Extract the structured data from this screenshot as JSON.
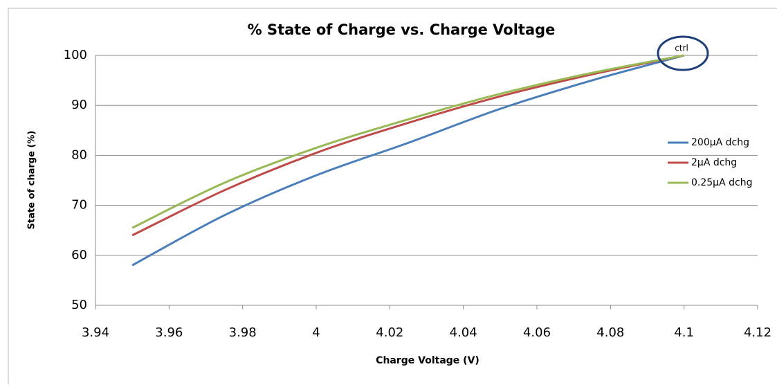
{
  "chart_data": {
    "type": "line",
    "title": "% State of Charge vs. Charge Voltage",
    "x_label": "Charge Voltage (V)",
    "y_label": "State of charge (%)",
    "annotation": "ctrl",
    "x": [
      3.95,
      3.975,
      4.0,
      4.025,
      4.05,
      4.075,
      4.1
    ],
    "series": [
      {
        "name": "200µA dchg",
        "color": "#4a7ebb",
        "values": [
          58,
          68,
          76,
          82.5,
          89.3,
          95,
          100
        ]
      },
      {
        "name": "2µA dchg",
        "color": "#be4b48",
        "values": [
          64,
          73,
          80.5,
          86.5,
          91.8,
          96.2,
          100
        ]
      },
      {
        "name": "0.25µA dchg",
        "color": "#98b954",
        "values": [
          65.5,
          74.5,
          81.5,
          87.2,
          92.3,
          96.5,
          100
        ]
      }
    ],
    "xlim": [
      3.94,
      4.12
    ],
    "xticks": [
      3.94,
      3.96,
      3.98,
      4,
      4.02,
      4.04,
      4.06,
      4.08,
      4.1,
      4.12
    ],
    "ylim": [
      50,
      100
    ],
    "yticks": [
      50,
      60,
      70,
      80,
      90,
      100
    ],
    "grid": true,
    "legend": "right"
  }
}
